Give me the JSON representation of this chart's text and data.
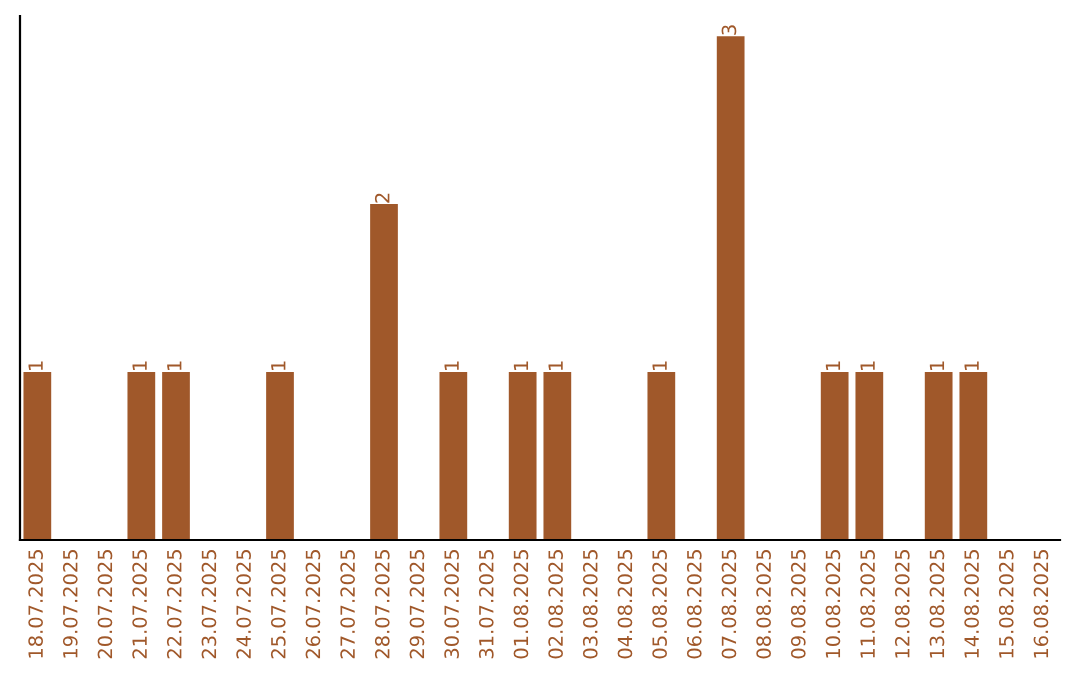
{
  "chart_data": {
    "type": "bar",
    "categories": [
      "18.07.2025",
      "19.07.2025",
      "20.07.2025",
      "21.07.2025",
      "22.07.2025",
      "23.07.2025",
      "24.07.2025",
      "25.07.2025",
      "26.07.2025",
      "27.07.2025",
      "28.07.2025",
      "29.07.2025",
      "30.07.2025",
      "31.07.2025",
      "01.08.2025",
      "02.08.2025",
      "03.08.2025",
      "04.08.2025",
      "05.08.2025",
      "06.08.2025",
      "07.08.2025",
      "08.08.2025",
      "09.08.2025",
      "10.08.2025",
      "11.08.2025",
      "12.08.2025",
      "13.08.2025",
      "14.08.2025",
      "15.08.2025",
      "16.08.2025"
    ],
    "values": [
      1,
      0,
      0,
      1,
      1,
      0,
      0,
      1,
      0,
      0,
      2,
      0,
      1,
      0,
      1,
      1,
      0,
      0,
      1,
      0,
      3,
      0,
      0,
      1,
      1,
      0,
      1,
      1,
      0,
      0
    ],
    "value_labels": [
      "1",
      null,
      null,
      "1",
      "1",
      null,
      null,
      "1",
      null,
      null,
      "2",
      null,
      "1",
      null,
      "1",
      "1",
      null,
      null,
      "1",
      null,
      "3",
      null,
      null,
      "1",
      "1",
      null,
      "1",
      "1",
      null,
      null
    ],
    "color": "#a0582a",
    "grid": false,
    "legend": false,
    "tick_labels": "x"
  }
}
